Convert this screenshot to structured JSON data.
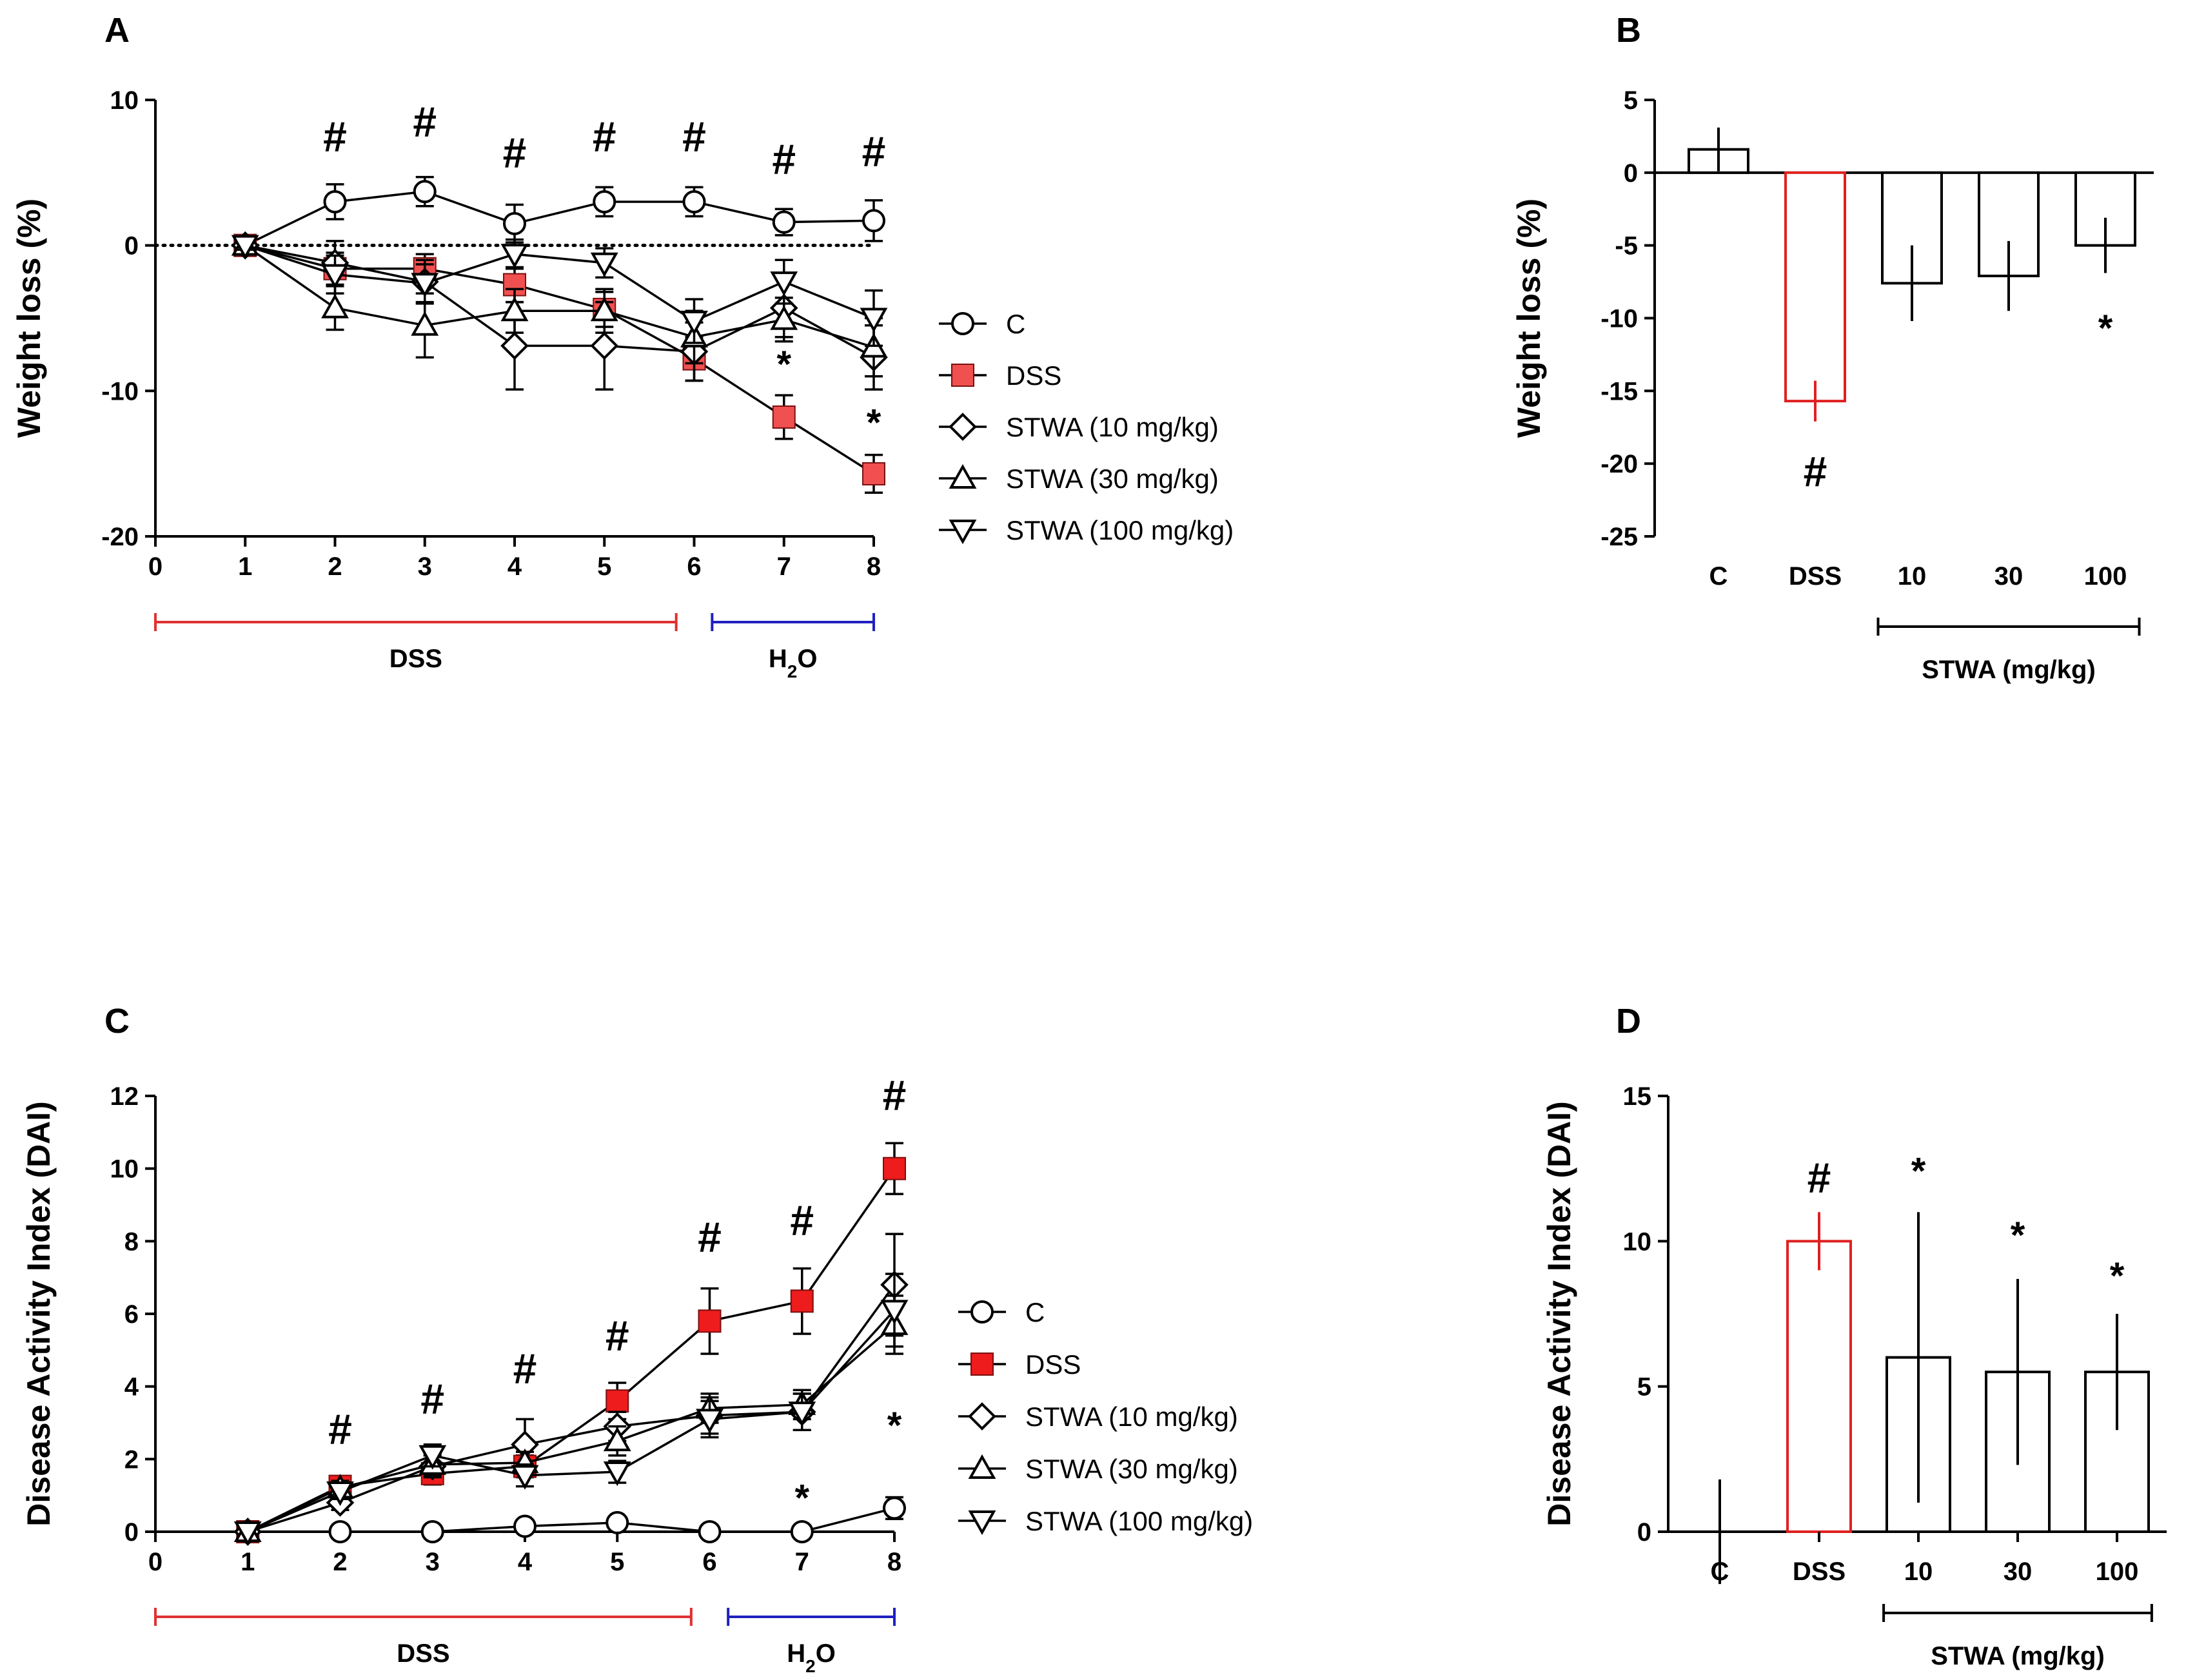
{
  "chart_data": [
    {
      "id": "A",
      "panel_label": "A",
      "type": "line",
      "ylabel": "Weight loss (%)",
      "xlabel": "",
      "ylim": [
        -20,
        10
      ],
      "yticks": [
        10,
        0,
        -10,
        -20
      ],
      "xlim": [
        0,
        8
      ],
      "xticks": [
        0,
        1,
        2,
        3,
        4,
        5,
        6,
        7,
        8
      ],
      "x": [
        1,
        2,
        3,
        4,
        5,
        6,
        7,
        8
      ],
      "reference_line": 0,
      "series": [
        {
          "name": "C",
          "marker": "circle",
          "color": "#000000",
          "values": [
            0,
            3,
            3.7,
            1.5,
            3,
            3,
            1.6,
            1.7
          ],
          "err": [
            0.3,
            1.2,
            1.0,
            1.3,
            1.0,
            1.0,
            0.9,
            1.4
          ]
        },
        {
          "name": "DSS",
          "marker": "square",
          "color": "#f05050",
          "values": [
            0,
            -1.6,
            -1.6,
            -2.7,
            -4.4,
            -7.8,
            -11.8,
            -15.7
          ],
          "err": [
            0.3,
            1.1,
            1.0,
            1.2,
            1.2,
            1.5,
            1.5,
            1.3
          ]
        },
        {
          "name": "STWA (10 mg/kg)",
          "marker": "diamond",
          "color": "#000000",
          "values": [
            0,
            -1.2,
            -2.5,
            -6.9,
            -6.9,
            -7.3,
            -4.3,
            -7.7
          ],
          "err": [
            0.3,
            1.5,
            1.5,
            3.0,
            3.0,
            2.0,
            2.0,
            2.2
          ]
        },
        {
          "name": "STWA (30 mg/kg)",
          "marker": "triangle-up",
          "color": "#000000",
          "values": [
            0,
            -4.3,
            -5.5,
            -4.5,
            -4.5,
            -6.3,
            -5.1,
            -7.0
          ],
          "err": [
            0.3,
            1.5,
            2.2,
            1.5,
            1.5,
            1.8,
            1.5,
            2.0
          ]
        },
        {
          "name": "STWA (100 mg/kg)",
          "marker": "triangle-down",
          "color": "#000000",
          "values": [
            0,
            -2.0,
            -2.6,
            -0.6,
            -1.2,
            -5.2,
            -2.5,
            -5.0
          ],
          "err": [
            0.3,
            1.3,
            1.3,
            1.0,
            1.0,
            1.5,
            1.5,
            1.9
          ]
        }
      ],
      "annotations": [
        {
          "text": "#",
          "x": 2
        },
        {
          "text": "#",
          "x": 3
        },
        {
          "text": "#",
          "x": 4
        },
        {
          "text": "#",
          "x": 5
        },
        {
          "text": "#",
          "x": 6
        },
        {
          "text": "#",
          "x": 7
        },
        {
          "text": "#",
          "x": 8
        },
        {
          "text": "*",
          "x": 7,
          "y": -8
        },
        {
          "text": "*",
          "x": 8,
          "y": -12
        }
      ],
      "brackets": [
        {
          "label": "DSS",
          "from": 0,
          "to": 5.8,
          "color": "#e03030"
        },
        {
          "label": "H2O",
          "from": 6.2,
          "to": 8,
          "color": "#2020c0"
        }
      ],
      "legend_position": "right"
    },
    {
      "id": "B",
      "panel_label": "B",
      "type": "bar",
      "ylabel": "Weight loss (%)",
      "ylim": [
        -25,
        5
      ],
      "yticks": [
        5,
        0,
        -5,
        -10,
        -15,
        -20,
        -25
      ],
      "categories": [
        "C",
        "DSS",
        "10",
        "30",
        "100"
      ],
      "values": [
        1.6,
        -15.7,
        -7.6,
        -7.1,
        -5.0
      ],
      "err": [
        1.5,
        1.4,
        2.6,
        2.4,
        1.9
      ],
      "colors": [
        "#000000",
        "#e02020",
        "#000000",
        "#000000",
        "#000000"
      ],
      "annotations": [
        {
          "text": "#",
          "category": "DSS",
          "y": -20.5
        },
        {
          "text": "*",
          "category": "100",
          "y": -10.5
        }
      ],
      "group_label": "STWA (mg/kg)"
    },
    {
      "id": "C",
      "panel_label": "C",
      "type": "line",
      "ylabel": "Disease Activity Index (DAI)",
      "xlabel": "",
      "ylim": [
        0,
        12
      ],
      "yticks": [
        0,
        2,
        4,
        6,
        8,
        10,
        12
      ],
      "xlim": [
        0,
        8
      ],
      "xticks": [
        0,
        1,
        2,
        3,
        4,
        5,
        6,
        7,
        8
      ],
      "x": [
        1,
        2,
        3,
        4,
        5,
        6,
        7,
        8
      ],
      "series": [
        {
          "name": "C",
          "marker": "circle",
          "color": "#000000",
          "values": [
            0,
            0,
            0,
            0.15,
            0.25,
            0,
            0,
            0.65
          ],
          "err": [
            0,
            0,
            0,
            0,
            0,
            0,
            0,
            0.3
          ]
        },
        {
          "name": "DSS",
          "marker": "square",
          "color": "#ee1c1c",
          "values": [
            0,
            1.25,
            1.6,
            1.8,
            3.6,
            5.8,
            6.35,
            10.0
          ],
          "err": [
            0,
            0.2,
            0.3,
            0.3,
            0.5,
            0.9,
            0.9,
            0.7
          ]
        },
        {
          "name": "STWA (10 mg/kg)",
          "marker": "diamond",
          "color": "#000000",
          "values": [
            0,
            0.8,
            1.8,
            2.4,
            2.9,
            3.2,
            3.3,
            6.8
          ],
          "err": [
            0,
            0.2,
            0.3,
            0.7,
            0.4,
            0.5,
            0.5,
            1.4
          ]
        },
        {
          "name": "STWA (30 mg/kg)",
          "marker": "triangle-up",
          "color": "#000000",
          "values": [
            0,
            1.2,
            1.85,
            1.9,
            2.5,
            3.4,
            3.5,
            5.7
          ],
          "err": [
            0,
            0.2,
            0.3,
            0.3,
            0.4,
            0.4,
            0.4,
            0.8
          ]
        },
        {
          "name": "STWA (100 mg/kg)",
          "marker": "triangle-down",
          "color": "#000000",
          "values": [
            0,
            1.1,
            2.1,
            1.55,
            1.65,
            3.1,
            3.3,
            6.1
          ],
          "err": [
            0,
            0.2,
            0.3,
            0.3,
            0.3,
            0.5,
            0.5,
            1.0
          ]
        }
      ],
      "annotations": [
        {
          "text": "#",
          "x": 2
        },
        {
          "text": "#",
          "x": 3
        },
        {
          "text": "#",
          "x": 4
        },
        {
          "text": "#",
          "x": 5
        },
        {
          "text": "#",
          "x": 6
        },
        {
          "text": "#",
          "x": 7
        },
        {
          "text": "#",
          "x": 8
        },
        {
          "text": "*",
          "x": 7,
          "y": 1.0
        },
        {
          "text": "*",
          "x": 8,
          "y": 3.0
        }
      ],
      "brackets": [
        {
          "label": "DSS",
          "from": 0,
          "to": 5.8,
          "color": "#e03030"
        },
        {
          "label": "H2O",
          "from": 6.2,
          "to": 8,
          "color": "#2020c0"
        }
      ],
      "legend_position": "right"
    },
    {
      "id": "D",
      "panel_label": "D",
      "type": "bar",
      "ylabel": "Disease Activity Index (DAI)",
      "ylim": [
        0,
        15
      ],
      "yticks": [
        0,
        5,
        10,
        15
      ],
      "categories": [
        "C",
        "DSS",
        "10",
        "30",
        "100"
      ],
      "values": [
        0,
        10,
        6,
        5.5,
        5.5
      ],
      "err": [
        1.8,
        1.0,
        5.0,
        3.2,
        2.0
      ],
      "colors": [
        "#000000",
        "#e02020",
        "#000000",
        "#000000",
        "#000000"
      ],
      "annotations": [
        {
          "text": "#",
          "category": "DSS",
          "y": 12.2
        },
        {
          "text": "*",
          "category": "10",
          "y": 12.5
        },
        {
          "text": "*",
          "category": "30",
          "y": 10.3
        },
        {
          "text": "*",
          "category": "100",
          "y": 8.9
        }
      ],
      "group_label": "STWA (mg/kg)"
    }
  ]
}
